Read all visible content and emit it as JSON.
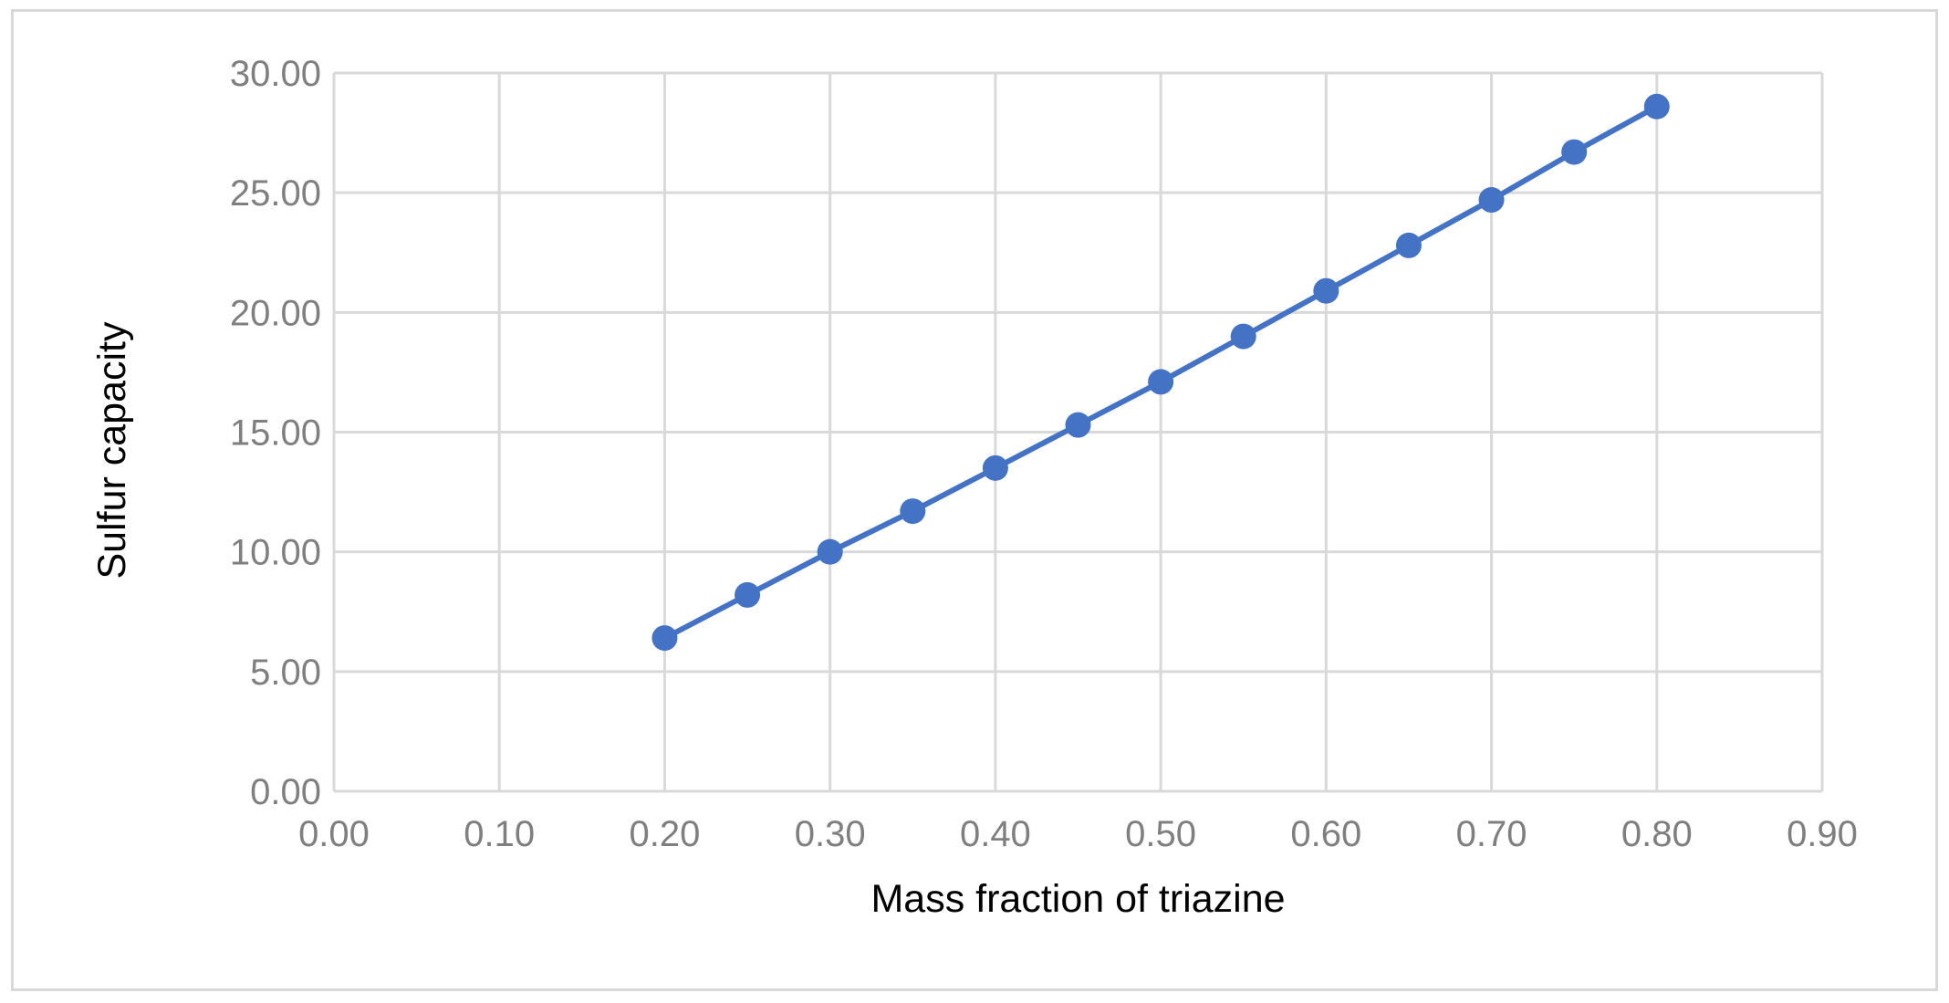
{
  "chart_data": {
    "type": "scatter",
    "title": "",
    "xlabel": "Mass fraction of triazine",
    "ylabel": "Sulfur capacity",
    "xlim": [
      0,
      0.9
    ],
    "ylim": [
      0,
      30
    ],
    "x_ticks": [
      "0.00",
      "0.10",
      "0.20",
      "0.30",
      "0.40",
      "0.50",
      "0.60",
      "0.70",
      "0.80",
      "0.90"
    ],
    "y_ticks": [
      "0.00",
      "5.00",
      "10.00",
      "15.00",
      "20.00",
      "25.00",
      "30.00"
    ],
    "grid": true,
    "legend": "none",
    "series": [
      {
        "style": "line-with-markers",
        "color": "#4472C4",
        "x": [
          0.2,
          0.25,
          0.3,
          0.35,
          0.4,
          0.45,
          0.5,
          0.55,
          0.6,
          0.65,
          0.7,
          0.75,
          0.8
        ],
        "y": [
          6.4,
          8.2,
          10.0,
          11.7,
          13.5,
          15.3,
          17.1,
          19.0,
          20.9,
          22.8,
          24.7,
          26.7,
          28.6
        ]
      }
    ]
  }
}
